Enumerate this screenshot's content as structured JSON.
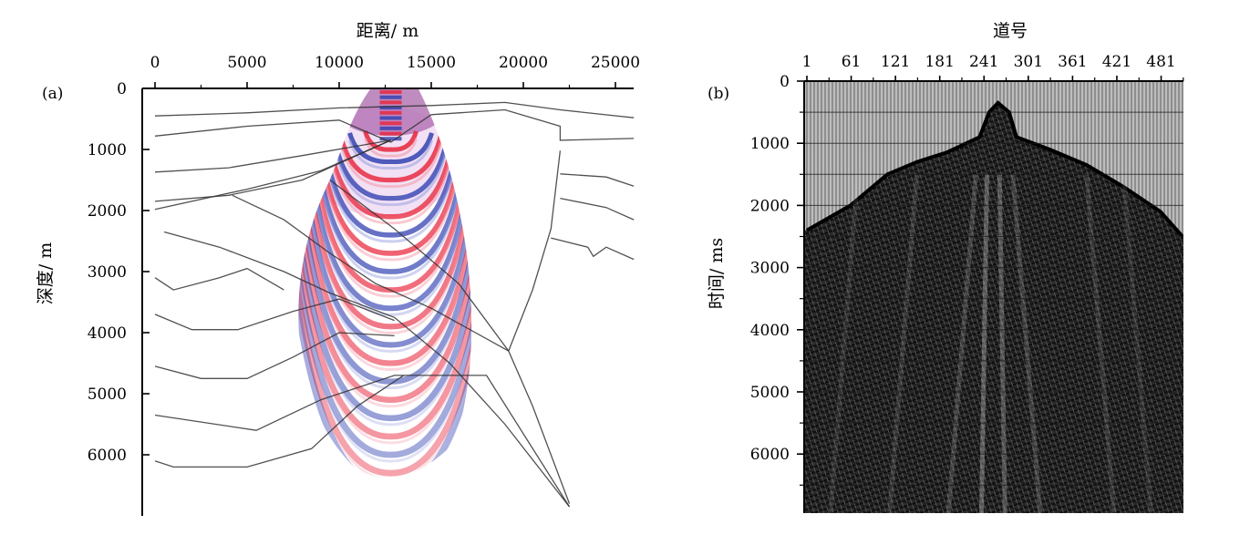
{
  "chart_data": [
    {
      "panel": "(a)",
      "type": "other",
      "xlabel": "距离/ m",
      "ylabel": "深度/ m",
      "x_axis_position": "top",
      "xticks": [
        0,
        5000,
        10000,
        15000,
        20000,
        25000
      ],
      "yticks": [
        0,
        1000,
        2000,
        3000,
        4000,
        5000,
        6000
      ],
      "xlim": [
        0,
        26000
      ],
      "ylim": [
        0,
        7000
      ],
      "y_inverted": true,
      "description_colors": {
        "wavefront_red": "#e8233a",
        "wavefront_blue": "#2f3fb0",
        "interfaces": "#333333"
      },
      "source": {
        "x": 12800,
        "y": 850
      },
      "wavefront_apex_depths": [
        1000,
        1200,
        1500,
        1800,
        2100,
        2400,
        2700,
        3000,
        3300,
        3600,
        3900,
        4200,
        4500,
        4800,
        5100,
        5400,
        5700,
        6000,
        6300,
        6550
      ],
      "interfaces": [
        [
          [
            0,
            450
          ],
          [
            5000,
            400
          ],
          [
            10000,
            320
          ],
          [
            15000,
            280
          ],
          [
            19000,
            230
          ],
          [
            22000,
            350
          ],
          [
            26000,
            480
          ]
        ],
        [
          [
            0,
            780
          ],
          [
            5000,
            620
          ],
          [
            10000,
            520
          ],
          [
            12800,
            880
          ],
          [
            15000,
            430
          ],
          [
            19000,
            350
          ],
          [
            22000,
            620
          ],
          [
            22000,
            850
          ],
          [
            26000,
            820
          ]
        ],
        [
          [
            0,
            1370
          ],
          [
            4000,
            1300
          ],
          [
            8000,
            1100
          ],
          [
            12800,
            850
          ]
        ],
        [
          [
            0,
            1850
          ],
          [
            4000,
            1750
          ],
          [
            8000,
            1500
          ],
          [
            12800,
            850
          ]
        ],
        [
          [
            0,
            1980
          ],
          [
            5000,
            1650
          ],
          [
            9000,
            1350
          ],
          [
            12800,
            850
          ]
        ],
        [
          [
            9500,
            1500
          ],
          [
            13000,
            2300
          ],
          [
            16500,
            3200
          ],
          [
            19200,
            4300
          ],
          [
            20500,
            5200
          ],
          [
            22500,
            6800
          ]
        ],
        [
          [
            22000,
            1020
          ],
          [
            21500,
            2300
          ],
          [
            20500,
            3300
          ],
          [
            19200,
            4300
          ]
        ],
        [
          [
            4200,
            1750
          ],
          [
            7000,
            2150
          ],
          [
            9500,
            2700
          ],
          [
            12000,
            3200
          ],
          [
            15000,
            3600
          ],
          [
            19200,
            4300
          ]
        ],
        [
          [
            500,
            2350
          ],
          [
            3500,
            2600
          ],
          [
            7000,
            3000
          ],
          [
            9500,
            3350
          ],
          [
            13000,
            3750
          ],
          [
            16000,
            4500
          ],
          [
            19000,
            5500
          ],
          [
            22500,
            6850
          ]
        ],
        [
          [
            0,
            3100
          ],
          [
            1000,
            3300
          ],
          [
            3500,
            3100
          ],
          [
            5000,
            2950
          ],
          [
            7000,
            3300
          ]
        ],
        [
          [
            0,
            3700
          ],
          [
            2000,
            3950
          ],
          [
            4500,
            3950
          ],
          [
            7500,
            3650
          ],
          [
            10000,
            3450
          ],
          [
            13000,
            3800
          ]
        ],
        [
          [
            0,
            4550
          ],
          [
            2500,
            4750
          ],
          [
            5000,
            4750
          ],
          [
            7500,
            4400
          ],
          [
            10000,
            4000
          ],
          [
            13000,
            4050
          ]
        ],
        [
          [
            0,
            5350
          ],
          [
            5500,
            5600
          ],
          [
            9000,
            5100
          ],
          [
            13000,
            4700
          ],
          [
            18000,
            4700
          ],
          [
            22500,
            6850
          ]
        ],
        [
          [
            0,
            6100
          ],
          [
            1000,
            6200
          ],
          [
            5000,
            6200
          ],
          [
            8500,
            5900
          ],
          [
            11000,
            5200
          ],
          [
            13500,
            4700
          ]
        ],
        [
          [
            22000,
            1400
          ],
          [
            24500,
            1450
          ],
          [
            26000,
            1600
          ]
        ],
        [
          [
            22000,
            1800
          ],
          [
            24500,
            1950
          ],
          [
            26000,
            2150
          ]
        ],
        [
          [
            21500,
            2450
          ],
          [
            23500,
            2600
          ],
          [
            23800,
            2750
          ],
          [
            24500,
            2600
          ],
          [
            26000,
            2800
          ]
        ]
      ]
    },
    {
      "panel": "(b)",
      "type": "heatmap",
      "xlabel": "道号",
      "ylabel": "时间/ ms",
      "x_axis_position": "top",
      "xticks": [
        1,
        61,
        121,
        181,
        241,
        301,
        361,
        421,
        481
      ],
      "yticks": [
        0,
        1000,
        2000,
        3000,
        4000,
        5000,
        6000
      ],
      "xlim": [
        1,
        510
      ],
      "ylim": [
        0,
        7000
      ],
      "y_inverted": true,
      "first_arrival": [
        [
          1,
          2400
        ],
        [
          60,
          2000
        ],
        [
          110,
          1500
        ],
        [
          150,
          1300
        ],
        [
          190,
          1150
        ],
        [
          235,
          900
        ],
        [
          248,
          500
        ],
        [
          260,
          350
        ],
        [
          275,
          500
        ],
        [
          285,
          900
        ],
        [
          330,
          1100
        ],
        [
          380,
          1350
        ],
        [
          430,
          1700
        ],
        [
          480,
          2100
        ],
        [
          510,
          2500
        ]
      ]
    }
  ]
}
